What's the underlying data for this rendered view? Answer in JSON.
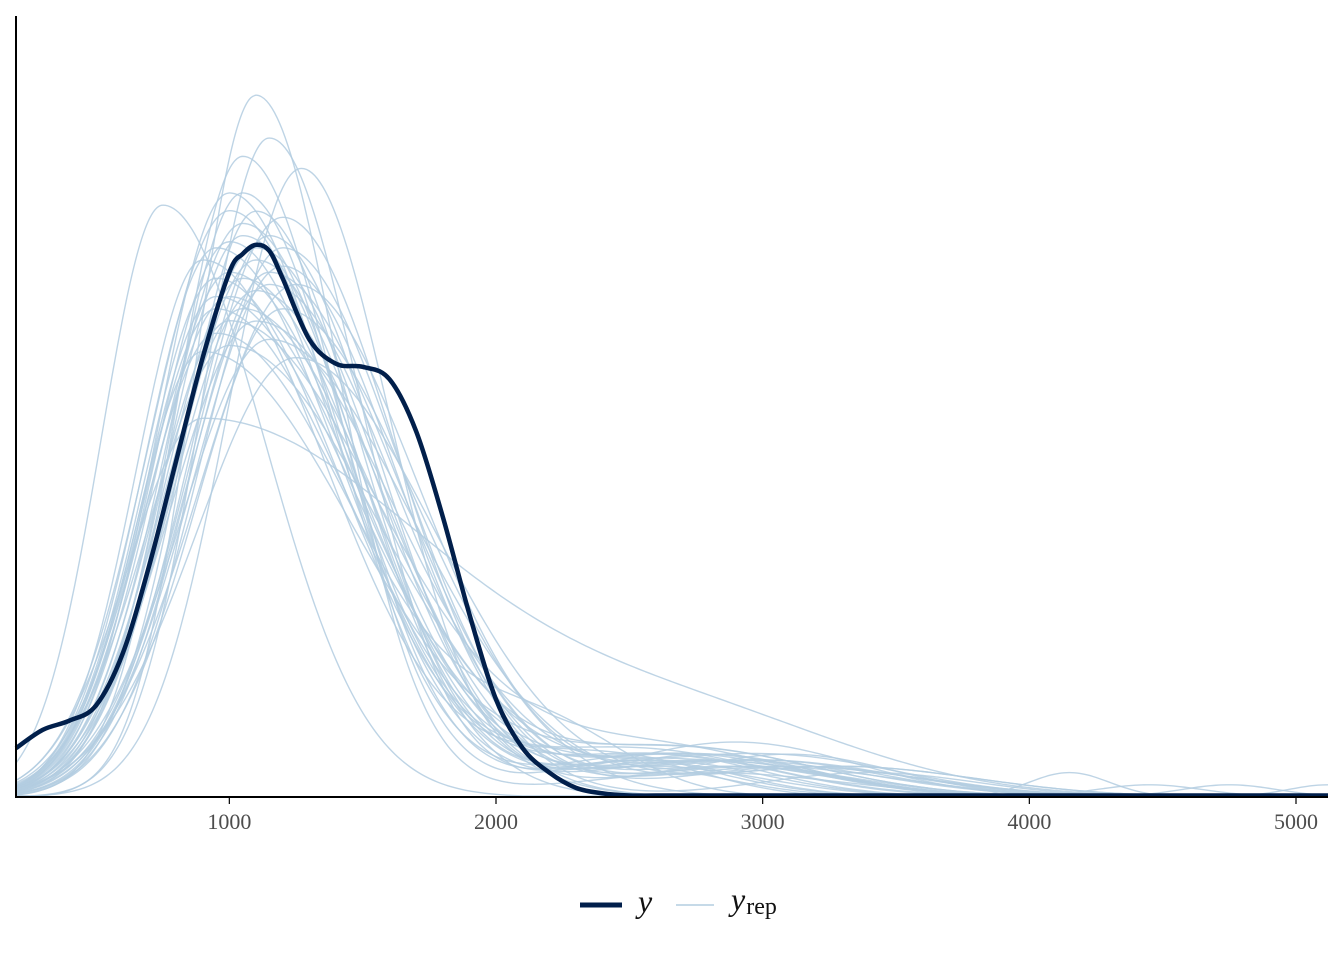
{
  "colors": {
    "y": "#011f4b",
    "yrep": "#b3cde0",
    "axis": "#000000"
  },
  "chart_data": {
    "type": "line",
    "title": "",
    "xlabel": "",
    "ylabel": "",
    "xlim": [
      200,
      5120
    ],
    "ylim": [
      0,
      1.0
    ],
    "x_ticks": [
      1000,
      2000,
      3000,
      4000,
      5000
    ],
    "x_tick_labels": [
      "1000",
      "2000",
      "3000",
      "4000",
      "5000"
    ],
    "y_axis_ticks_shown": false,
    "grid": false,
    "legend": {
      "placement": "bottom",
      "entries": [
        {
          "key": "y",
          "label": "y",
          "subscript": ""
        },
        {
          "key": "yrep",
          "label": "y",
          "subscript": "rep"
        }
      ]
    },
    "y_series": {
      "name": "y",
      "x": [
        200,
        300,
        400,
        500,
        600,
        700,
        800,
        900,
        1000,
        1050,
        1100,
        1150,
        1200,
        1300,
        1400,
        1500,
        1600,
        1700,
        1800,
        1900,
        2000,
        2100,
        2200,
        2300,
        2400,
        2500,
        2600,
        2800,
        3200,
        4000,
        5120
      ],
      "y": [
        0.08,
        0.11,
        0.125,
        0.15,
        0.235,
        0.38,
        0.55,
        0.72,
        0.86,
        0.89,
        0.905,
        0.895,
        0.85,
        0.75,
        0.71,
        0.705,
        0.685,
        0.6,
        0.46,
        0.3,
        0.16,
        0.08,
        0.04,
        0.015,
        0.006,
        0.002,
        0.001,
        0.0,
        0.0,
        0.0,
        0.0
      ]
    },
    "yrep_series": {
      "name": "y_rep",
      "draws": [
        {
          "peak_x": 750,
          "peak_y": 0.97,
          "sd_left": 230,
          "sd_right": 380,
          "tail_x": 2200,
          "tail_y": 0.0,
          "tail_sd": 300
        },
        {
          "peak_x": 1100,
          "peak_y": 1.15,
          "sd_left": 230,
          "sd_right": 310,
          "tail_x": 2800,
          "tail_y": 0.04,
          "tail_sd": 500
        },
        {
          "peak_x": 1270,
          "peak_y": 1.03,
          "sd_left": 280,
          "sd_right": 330,
          "tail_x": 2600,
          "tail_y": 0.05,
          "tail_sd": 400
        },
        {
          "peak_x": 1000,
          "peak_y": 0.96,
          "sd_left": 300,
          "sd_right": 420,
          "tail_x": 2500,
          "tail_y": 0.08,
          "tail_sd": 500
        },
        {
          "peak_x": 900,
          "peak_y": 0.62,
          "sd_left": 280,
          "sd_right": 900,
          "tail_x": 2800,
          "tail_y": 0.1,
          "tail_sd": 600
        },
        {
          "peak_x": 1050,
          "peak_y": 0.92,
          "sd_left": 280,
          "sd_right": 430,
          "tail_x": 2900,
          "tail_y": 0.09,
          "tail_sd": 450
        },
        {
          "peak_x": 1150,
          "peak_y": 0.86,
          "sd_left": 300,
          "sd_right": 480,
          "tail_x": 3100,
          "tail_y": 0.07,
          "tail_sd": 400
        },
        {
          "peak_x": 950,
          "peak_y": 0.82,
          "sd_left": 270,
          "sd_right": 520,
          "tail_x": 2700,
          "tail_y": 0.06,
          "tail_sd": 500
        },
        {
          "peak_x": 1200,
          "peak_y": 0.95,
          "sd_left": 330,
          "sd_right": 420,
          "tail_x": 3000,
          "tail_y": 0.05,
          "tail_sd": 500
        },
        {
          "peak_x": 1000,
          "peak_y": 0.78,
          "sd_left": 280,
          "sd_right": 560,
          "tail_x": 2600,
          "tail_y": 0.08,
          "tail_sd": 500
        },
        {
          "peak_x": 1100,
          "peak_y": 0.9,
          "sd_left": 300,
          "sd_right": 450,
          "tail_x": 4150,
          "tail_y": 0.04,
          "tail_sd": 150
        },
        {
          "peak_x": 1050,
          "peak_y": 1.05,
          "sd_left": 250,
          "sd_right": 360,
          "tail_x": 2500,
          "tail_y": 0.06,
          "tail_sd": 300
        },
        {
          "peak_x": 950,
          "peak_y": 0.9,
          "sd_left": 270,
          "sd_right": 470,
          "tail_x": 2800,
          "tail_y": 0.07,
          "tail_sd": 400
        },
        {
          "peak_x": 1150,
          "peak_y": 0.75,
          "sd_left": 330,
          "sd_right": 540,
          "tail_x": 3300,
          "tail_y": 0.05,
          "tail_sd": 500
        },
        {
          "peak_x": 1250,
          "peak_y": 0.84,
          "sd_left": 360,
          "sd_right": 460,
          "tail_x": 3000,
          "tail_y": 0.06,
          "tail_sd": 450
        },
        {
          "peak_x": 1000,
          "peak_y": 0.99,
          "sd_left": 270,
          "sd_right": 400,
          "tail_x": 2600,
          "tail_y": 0.07,
          "tail_sd": 400
        },
        {
          "peak_x": 900,
          "peak_y": 0.73,
          "sd_left": 250,
          "sd_right": 560,
          "tail_x": 2700,
          "tail_y": 0.08,
          "tail_sd": 500
        },
        {
          "peak_x": 1100,
          "peak_y": 0.88,
          "sd_left": 300,
          "sd_right": 440,
          "tail_x": 2900,
          "tail_y": 0.06,
          "tail_sd": 500
        },
        {
          "peak_x": 1200,
          "peak_y": 0.8,
          "sd_left": 320,
          "sd_right": 500,
          "tail_x": 4450,
          "tail_y": 0.02,
          "tail_sd": 200
        },
        {
          "peak_x": 1050,
          "peak_y": 0.94,
          "sd_left": 290,
          "sd_right": 420,
          "tail_x": 4750,
          "tail_y": 0.02,
          "tail_sd": 180
        },
        {
          "peak_x": 1000,
          "peak_y": 0.86,
          "sd_left": 280,
          "sd_right": 480,
          "tail_x": 5120,
          "tail_y": 0.02,
          "tail_sd": 150
        },
        {
          "peak_x": 1150,
          "peak_y": 1.08,
          "sd_left": 250,
          "sd_right": 340,
          "tail_x": 2500,
          "tail_y": 0.05,
          "tail_sd": 350
        },
        {
          "peak_x": 950,
          "peak_y": 0.76,
          "sd_left": 270,
          "sd_right": 520,
          "tail_x": 2200,
          "tail_y": 0.1,
          "tail_sd": 300
        },
        {
          "peak_x": 1100,
          "peak_y": 0.83,
          "sd_left": 310,
          "sd_right": 470,
          "tail_x": 3100,
          "tail_y": 0.05,
          "tail_sd": 500
        },
        {
          "peak_x": 1000,
          "peak_y": 0.91,
          "sd_left": 280,
          "sd_right": 430,
          "tail_x": 2800,
          "tail_y": 0.06,
          "tail_sd": 450
        },
        {
          "peak_x": 1200,
          "peak_y": 0.87,
          "sd_left": 330,
          "sd_right": 430,
          "tail_x": 3400,
          "tail_y": 0.04,
          "tail_sd": 400
        },
        {
          "peak_x": 1050,
          "peak_y": 0.8,
          "sd_left": 300,
          "sd_right": 500,
          "tail_x": 2700,
          "tail_y": 0.08,
          "tail_sd": 500
        },
        {
          "peak_x": 950,
          "peak_y": 0.85,
          "sd_left": 270,
          "sd_right": 470,
          "tail_x": 2600,
          "tail_y": 0.07,
          "tail_sd": 450
        },
        {
          "peak_x": 1100,
          "peak_y": 0.78,
          "sd_left": 320,
          "sd_right": 520,
          "tail_x": 3000,
          "tail_y": 0.06,
          "tail_sd": 500
        },
        {
          "peak_x": 1150,
          "peak_y": 0.92,
          "sd_left": 300,
          "sd_right": 410,
          "tail_x": 2900,
          "tail_y": 0.05,
          "tail_sd": 400
        },
        {
          "peak_x": 1000,
          "peak_y": 0.82,
          "sd_left": 300,
          "sd_right": 490,
          "tail_x": 2750,
          "tail_y": 0.07,
          "tail_sd": 450
        },
        {
          "peak_x": 1250,
          "peak_y": 0.72,
          "sd_left": 370,
          "sd_right": 520,
          "tail_x": 3300,
          "tail_y": 0.05,
          "tail_sd": 500
        },
        {
          "peak_x": 900,
          "peak_y": 0.88,
          "sd_left": 250,
          "sd_right": 470,
          "tail_x": 2400,
          "tail_y": 0.07,
          "tail_sd": 400
        },
        {
          "peak_x": 1050,
          "peak_y": 0.85,
          "sd_left": 290,
          "sd_right": 460,
          "tail_x": 2800,
          "tail_y": 0.06,
          "tail_sd": 450
        },
        {
          "peak_x": 1100,
          "peak_y": 0.96,
          "sd_left": 270,
          "sd_right": 390,
          "tail_x": 2600,
          "tail_y": 0.06,
          "tail_sd": 400
        },
        {
          "peak_x": 1000,
          "peak_y": 0.74,
          "sd_left": 300,
          "sd_right": 560,
          "tail_x": 3000,
          "tail_y": 0.07,
          "tail_sd": 500
        },
        {
          "peak_x": 1200,
          "peak_y": 0.9,
          "sd_left": 310,
          "sd_right": 440,
          "tail_x": 2900,
          "tail_y": 0.05,
          "tail_sd": 450
        },
        {
          "peak_x": 950,
          "peak_y": 0.8,
          "sd_left": 270,
          "sd_right": 500,
          "tail_x": 2700,
          "tail_y": 0.07,
          "tail_sd": 450
        },
        {
          "peak_x": 1150,
          "peak_y": 0.84,
          "sd_left": 310,
          "sd_right": 470,
          "tail_x": 3150,
          "tail_y": 0.05,
          "tail_sd": 450
        },
        {
          "peak_x": 1050,
          "peak_y": 0.99,
          "sd_left": 270,
          "sd_right": 380,
          "tail_x": 2550,
          "tail_y": 0.06,
          "tail_sd": 350
        }
      ]
    }
  }
}
